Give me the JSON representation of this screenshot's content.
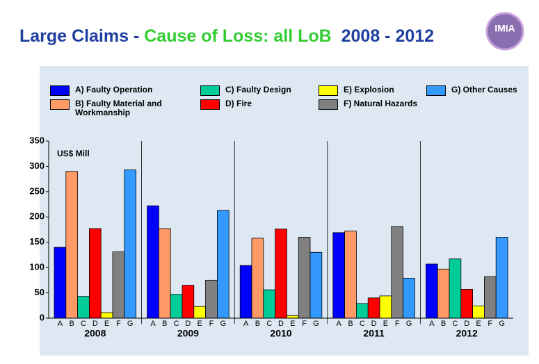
{
  "chart_data": {
    "type": "bar",
    "title_parts": [
      {
        "text": "Large Claims - ",
        "color": "#1f3f9f"
      },
      {
        "text": "Cause of Loss: all LoB",
        "color": "#33cc33"
      },
      {
        "text": "  2008 - 2012",
        "color": "#1f3f9f"
      }
    ],
    "logo": "IMIA",
    "y_label": "US$ Mill",
    "categories": [
      "2008",
      "2009",
      "2010",
      "2011",
      "2012"
    ],
    "bar_labels": [
      "A",
      "B",
      "C",
      "D",
      "E",
      "F",
      "G"
    ],
    "series": [
      {
        "name": "A) Faulty Operation",
        "color": "#0000ff",
        "values": [
          140,
          222,
          104,
          169,
          107
        ]
      },
      {
        "name": "B) Faulty Material and Workmanship",
        "color": "#ff9966",
        "values": [
          290,
          177,
          158,
          172,
          97
        ]
      },
      {
        "name": "C) Faulty Design",
        "color": "#00cc99",
        "values": [
          43,
          47,
          56,
          29,
          117
        ]
      },
      {
        "name": "D) Fire",
        "color": "#ff0000",
        "values": [
          177,
          65,
          176,
          40,
          57
        ]
      },
      {
        "name": "E) Explosion",
        "color": "#ffff00",
        "values": [
          11,
          23,
          5,
          44,
          24
        ]
      },
      {
        "name": "F) Natural Hazards",
        "color": "#808080",
        "values": [
          131,
          75,
          160,
          181,
          82
        ]
      },
      {
        "name": "G) Other Causes",
        "color": "#3399ff",
        "values": [
          293,
          213,
          130,
          79,
          160
        ]
      }
    ],
    "ylim": [
      0,
      350
    ],
    "yticks": [
      0,
      50,
      100,
      150,
      200,
      250,
      300,
      350
    ]
  }
}
